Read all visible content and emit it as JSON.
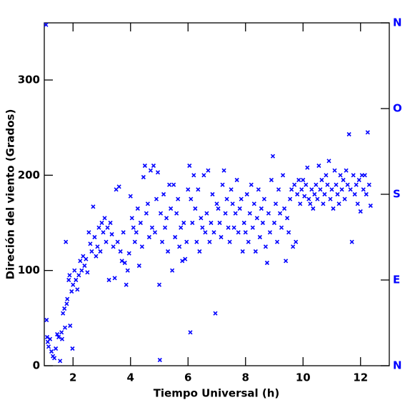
{
  "chart_data": {
    "type": "scatter",
    "x_label": "Tiempo Universal (h)",
    "y_label": "Direción del viento (Grados)",
    "color": "#0000ff",
    "y2color": "#0000ff",
    "xlim": [
      1,
      13
    ],
    "ylim": [
      0,
      360
    ],
    "xticks": [
      2,
      4,
      6,
      8,
      10,
      12
    ],
    "yticks": [
      0,
      100,
      200,
      300
    ],
    "y2lim": [
      0,
      360
    ],
    "y2ticks": [
      {
        "value": 0,
        "label": "N"
      },
      {
        "value": 90,
        "label": "E"
      },
      {
        "value": 180,
        "label": "S"
      },
      {
        "value": 270,
        "label": "O"
      },
      {
        "value": 360,
        "label": "N"
      }
    ],
    "x": [
      1.06,
      1.08,
      1.1,
      1.12,
      1.15,
      1.2,
      1.25,
      1.3,
      1.35,
      1.4,
      1.45,
      1.5,
      1.55,
      1.6,
      1.62,
      1.65,
      1.7,
      1.72,
      1.75,
      1.78,
      1.8,
      1.85,
      1.88,
      1.9,
      1.95,
      1.98,
      2.0,
      2.05,
      2.1,
      2.15,
      2.2,
      2.25,
      2.3,
      2.35,
      2.4,
      2.45,
      2.5,
      2.55,
      2.6,
      2.65,
      2.7,
      2.75,
      2.8,
      2.85,
      2.9,
      2.95,
      3.0,
      3.05,
      3.1,
      3.15,
      3.2,
      3.25,
      3.3,
      3.35,
      3.4,
      3.45,
      3.5,
      3.55,
      3.6,
      3.65,
      3.7,
      3.75,
      3.8,
      3.85,
      3.9,
      3.95,
      4.0,
      4.05,
      4.1,
      4.15,
      4.2,
      4.25,
      4.3,
      4.35,
      4.4,
      4.45,
      4.5,
      4.55,
      4.6,
      4.65,
      4.7,
      4.75,
      4.8,
      4.85,
      4.9,
      4.95,
      5.0,
      5.02,
      5.05,
      5.1,
      5.15,
      5.2,
      5.25,
      5.3,
      5.35,
      5.4,
      5.45,
      5.5,
      5.55,
      5.6,
      5.65,
      5.7,
      5.75,
      5.8,
      5.85,
      5.9,
      5.95,
      6.0,
      6.05,
      6.08,
      6.1,
      6.15,
      6.2,
      6.25,
      6.3,
      6.35,
      6.4,
      6.45,
      6.5,
      6.55,
      6.6,
      6.65,
      6.7,
      6.75,
      6.8,
      6.85,
      6.9,
      6.95,
      7.0,
      7.05,
      7.1,
      7.15,
      7.2,
      7.25,
      7.3,
      7.35,
      7.4,
      7.45,
      7.5,
      7.55,
      7.6,
      7.65,
      7.7,
      7.75,
      7.8,
      7.85,
      7.9,
      7.95,
      8.0,
      8.05,
      8.1,
      8.15,
      8.2,
      8.25,
      8.3,
      8.35,
      8.4,
      8.45,
      8.5,
      8.55,
      8.6,
      8.65,
      8.7,
      8.75,
      8.8,
      8.85,
      8.9,
      8.95,
      9.0,
      9.05,
      9.1,
      9.15,
      9.2,
      9.25,
      9.3,
      9.35,
      9.4,
      9.45,
      9.5,
      9.55,
      9.6,
      9.65,
      9.7,
      9.75,
      9.8,
      9.85,
      9.9,
      9.95,
      10.0,
      10.05,
      10.1,
      10.15,
      10.2,
      10.25,
      10.3,
      10.35,
      10.4,
      10.45,
      10.5,
      10.55,
      10.6,
      10.65,
      10.7,
      10.75,
      10.8,
      10.85,
      10.9,
      10.95,
      11.0,
      11.05,
      11.1,
      11.15,
      11.2,
      11.25,
      11.3,
      11.35,
      11.4,
      11.45,
      11.5,
      11.55,
      11.6,
      11.65,
      11.7,
      11.75,
      11.8,
      11.85,
      11.9,
      11.95,
      12.0,
      12.05,
      12.1,
      12.15,
      12.2,
      12.25,
      12.3,
      12.35
    ],
    "values": [
      358,
      48,
      30,
      25,
      20,
      28,
      15,
      10,
      8,
      18,
      33,
      30,
      5,
      35,
      28,
      55,
      60,
      40,
      130,
      65,
      70,
      90,
      95,
      42,
      78,
      18,
      85,
      100,
      90,
      80,
      95,
      110,
      100,
      115,
      105,
      112,
      98,
      140,
      128,
      120,
      167,
      135,
      115,
      125,
      145,
      120,
      150,
      140,
      155,
      130,
      145,
      90,
      150,
      138,
      125,
      92,
      185,
      130,
      188,
      120,
      110,
      140,
      108,
      85,
      100,
      118,
      178,
      155,
      145,
      130,
      140,
      165,
      105,
      150,
      125,
      198,
      210,
      160,
      170,
      135,
      205,
      145,
      210,
      140,
      175,
      203,
      85,
      6,
      160,
      130,
      180,
      145,
      155,
      120,
      190,
      165,
      100,
      190,
      135,
      160,
      175,
      125,
      145,
      110,
      150,
      112,
      130,
      185,
      210,
      35,
      175,
      150,
      200,
      165,
      130,
      185,
      120,
      155,
      145,
      200,
      140,
      160,
      205,
      130,
      150,
      180,
      140,
      55,
      170,
      165,
      150,
      135,
      190,
      205,
      160,
      175,
      145,
      130,
      185,
      170,
      145,
      160,
      195,
      140,
      165,
      175,
      120,
      150,
      140,
      180,
      130,
      160,
      190,
      145,
      170,
      120,
      155,
      185,
      135,
      165,
      150,
      175,
      125,
      108,
      160,
      140,
      195,
      220,
      150,
      170,
      130,
      185,
      160,
      145,
      200,
      165,
      110,
      155,
      140,
      175,
      185,
      125,
      190,
      130,
      180,
      195,
      170,
      185,
      195,
      178,
      190,
      208,
      175,
      170,
      185,
      165,
      180,
      190,
      175,
      210,
      185,
      195,
      170,
      180,
      200,
      190,
      215,
      175,
      185,
      165,
      205,
      190,
      180,
      170,
      200,
      185,
      195,
      175,
      205,
      190,
      243,
      185,
      130,
      200,
      180,
      190,
      170,
      195,
      162,
      200,
      185,
      200,
      180,
      245,
      190,
      168
    ]
  }
}
